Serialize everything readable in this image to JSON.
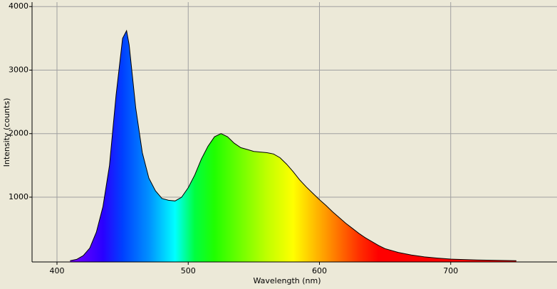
{
  "chart_data": {
    "type": "spectrum",
    "x_label": "Wavelength (nm)",
    "y_label": "Intensity (counts)",
    "x": [
      410,
      415,
      420,
      425,
      430,
      435,
      440,
      445,
      450,
      453,
      455,
      460,
      465,
      470,
      475,
      480,
      485,
      490,
      495,
      500,
      505,
      510,
      515,
      520,
      525,
      530,
      535,
      540,
      545,
      550,
      555,
      560,
      565,
      570,
      575,
      580,
      585,
      590,
      595,
      600,
      605,
      610,
      615,
      620,
      625,
      630,
      635,
      640,
      645,
      650,
      660,
      670,
      680,
      690,
      700,
      720,
      750
    ],
    "y": [
      0,
      20,
      80,
      200,
      450,
      850,
      1500,
      2600,
      3500,
      3620,
      3400,
      2400,
      1700,
      1300,
      1100,
      980,
      950,
      940,
      1000,
      1150,
      1350,
      1600,
      1800,
      1950,
      2000,
      1950,
      1850,
      1780,
      1750,
      1720,
      1710,
      1700,
      1680,
      1620,
      1520,
      1400,
      1270,
      1160,
      1060,
      960,
      870,
      770,
      680,
      590,
      510,
      430,
      360,
      300,
      240,
      190,
      130,
      90,
      60,
      40,
      25,
      10,
      0
    ],
    "xlim": [
      381,
      781
    ],
    "ylim": [
      -20,
      4070
    ],
    "xticks": [
      400,
      500,
      600,
      700
    ],
    "yticks": [
      1000,
      2000,
      3000,
      4000
    ],
    "grid": true,
    "line_color": "#000000",
    "gradient": [
      {
        "x": 410,
        "color": "#7a00ff"
      },
      {
        "x": 435,
        "color": "#2a00ff"
      },
      {
        "x": 450,
        "color": "#0040ff"
      },
      {
        "x": 470,
        "color": "#0090ff"
      },
      {
        "x": 490,
        "color": "#00ffff"
      },
      {
        "x": 505,
        "color": "#00ff40"
      },
      {
        "x": 520,
        "color": "#20ff00"
      },
      {
        "x": 560,
        "color": "#c0ff00"
      },
      {
        "x": 580,
        "color": "#ffff00"
      },
      {
        "x": 605,
        "color": "#ff9900"
      },
      {
        "x": 630,
        "color": "#ff3000"
      },
      {
        "x": 645,
        "color": "#ff0000"
      },
      {
        "x": 750,
        "color": "#ff0000"
      }
    ]
  }
}
